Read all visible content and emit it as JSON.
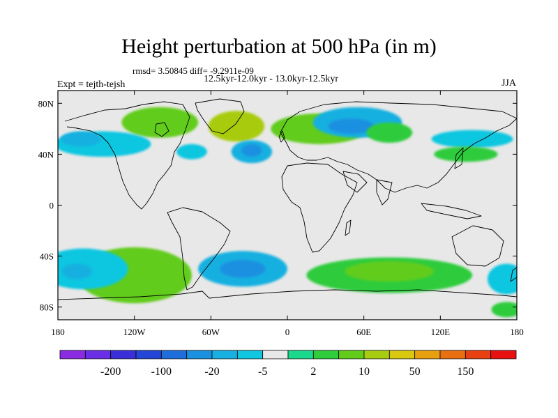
{
  "title": "Height perturbation at 500 hPa (in m)",
  "stats": "rmsd= 3.50845 diff= -9.2911e-09",
  "period": "12.5kyr-12.0kyr - 13.0kyr-12.5kyr",
  "experiment": "Expt = tejth-tejsh",
  "season": "JJA",
  "chart_data": {
    "type": "heatmap",
    "projection": "cylindrical-equidistant",
    "xlim": [
      -180,
      180
    ],
    "ylim": [
      -90,
      90
    ],
    "x_ticks": [
      {
        "value": -180,
        "label": "180"
      },
      {
        "value": -120,
        "label": "120W"
      },
      {
        "value": -60,
        "label": "60W"
      },
      {
        "value": 0,
        "label": "0"
      },
      {
        "value": 60,
        "label": "60E"
      },
      {
        "value": 120,
        "label": "120E"
      },
      {
        "value": 180,
        "label": "180"
      }
    ],
    "y_ticks": [
      {
        "value": 80,
        "label": "80N"
      },
      {
        "value": 40,
        "label": "40N"
      },
      {
        "value": 0,
        "label": "0"
      },
      {
        "value": -40,
        "label": "40S"
      },
      {
        "value": -80,
        "label": "80S"
      }
    ],
    "colorbar": {
      "colors": [
        "#8a2be2",
        "#6a2ee6",
        "#3a2fd8",
        "#2346d6",
        "#1e6fdc",
        "#1a90e0",
        "#17b0e0",
        "#11c6e0",
        "#e8e8e8",
        "#1ad88c",
        "#2fcc3c",
        "#62cc1a",
        "#a8cc10",
        "#d8c810",
        "#e8a010",
        "#e87010",
        "#e84010",
        "#e81010"
      ],
      "labels": [
        {
          "after_bin": 1,
          "text": "-200"
        },
        {
          "after_bin": 3,
          "text": "-100"
        },
        {
          "after_bin": 5,
          "text": "-20"
        },
        {
          "after_bin": 7,
          "text": "-5"
        },
        {
          "after_bin": 9,
          "text": "2"
        },
        {
          "after_bin": 11,
          "text": "10"
        },
        {
          "after_bin": 13,
          "text": "50"
        },
        {
          "after_bin": 15,
          "text": "150"
        }
      ]
    },
    "anomaly_regions": [
      {
        "lon": 25,
        "lat": 60,
        "rlon": 38,
        "rlat": 12,
        "bin": 11
      },
      {
        "lon": -100,
        "lat": 65,
        "rlon": 30,
        "rlat": 12,
        "bin": 11
      },
      {
        "lon": -40,
        "lat": 62,
        "rlon": 22,
        "rlat": 12,
        "bin": 12
      },
      {
        "lon": -145,
        "lat": 48,
        "rlon": 38,
        "rlat": 10,
        "bin": 7
      },
      {
        "lon": -162,
        "lat": 52,
        "rlon": 16,
        "rlat": 6,
        "bin": 6
      },
      {
        "lon": -75,
        "lat": 42,
        "rlon": 12,
        "rlat": 6,
        "bin": 7
      },
      {
        "lon": -28,
        "lat": 42,
        "rlon": 16,
        "rlat": 9,
        "bin": 6
      },
      {
        "lon": -28,
        "lat": 43,
        "rlon": 8,
        "rlat": 5,
        "bin": 5
      },
      {
        "lon": 55,
        "lat": 65,
        "rlon": 35,
        "rlat": 12,
        "bin": 6
      },
      {
        "lon": 50,
        "lat": 62,
        "rlon": 18,
        "rlat": 6,
        "bin": 5
      },
      {
        "lon": 80,
        "lat": 57,
        "rlon": 18,
        "rlat": 8,
        "bin": 10
      },
      {
        "lon": 145,
        "lat": 52,
        "rlon": 32,
        "rlat": 7,
        "bin": 7
      },
      {
        "lon": 140,
        "lat": 40,
        "rlon": 25,
        "rlat": 6,
        "bin": 10
      },
      {
        "lon": -120,
        "lat": -55,
        "rlon": 45,
        "rlat": 22,
        "bin": 11
      },
      {
        "lon": -160,
        "lat": -50,
        "rlon": 35,
        "rlat": 16,
        "bin": 7
      },
      {
        "lon": -165,
        "lat": -52,
        "rlon": 12,
        "rlat": 6,
        "bin": 6
      },
      {
        "lon": -35,
        "lat": -50,
        "rlon": 35,
        "rlat": 14,
        "bin": 6
      },
      {
        "lon": -35,
        "lat": -50,
        "rlon": 18,
        "rlat": 7,
        "bin": 5
      },
      {
        "lon": 80,
        "lat": -55,
        "rlon": 65,
        "rlat": 14,
        "bin": 10
      },
      {
        "lon": 80,
        "lat": -52,
        "rlon": 35,
        "rlat": 8,
        "bin": 11
      },
      {
        "lon": 70,
        "lat": -78,
        "rlon": 60,
        "rlat": 6,
        "bin": 8
      },
      {
        "lon": 172,
        "lat": -58,
        "rlon": 15,
        "rlat": 12,
        "bin": 7
      },
      {
        "lon": 172,
        "lat": -82,
        "rlon": 12,
        "rlat": 6,
        "bin": 10
      }
    ]
  }
}
